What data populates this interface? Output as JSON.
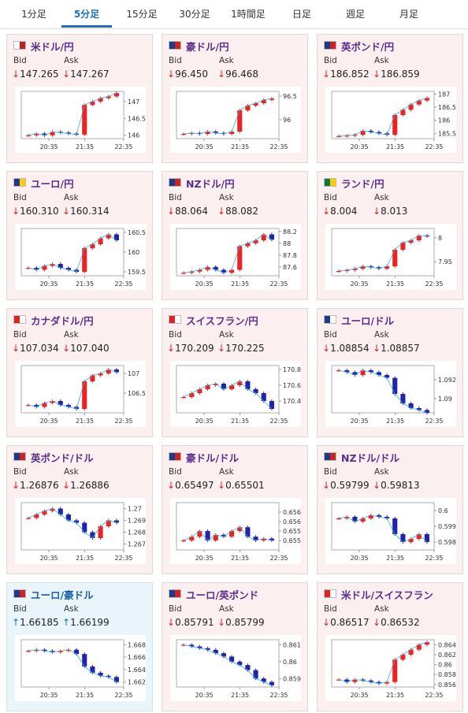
{
  "tabs": [
    "1分足",
    "5分足",
    "15分足",
    "30分足",
    "1時間足",
    "日足",
    "週足",
    "月足"
  ],
  "selected_tab": 1,
  "bid_label": "Bid",
  "ask_label": "Ask",
  "x_labels": [
    "20:35",
    "21:35",
    "22:35"
  ],
  "cards": [
    {
      "name": "米ドル/円",
      "bid_arrow": "↓",
      "bid": "147.265",
      "ask_arrow": "↓",
      "ask": "147.267",
      "ylim": [
        145.9,
        147.3
      ],
      "yticks": [
        146,
        146.5,
        147
      ],
      "closes": [
        146.0,
        146.05,
        146.0,
        146.1,
        146.08,
        146.05,
        146.02,
        146.9,
        147.0,
        147.1,
        147.15,
        147.25
      ]
    },
    {
      "name": "豪ドル/円",
      "bid_arrow": "↓",
      "bid": "96.450",
      "ask_arrow": "↓",
      "ask": "96.468",
      "ylim": [
        95.6,
        96.6
      ],
      "yticks": [
        96,
        96.5
      ],
      "closes": [
        95.7,
        95.72,
        95.7,
        95.75,
        95.72,
        95.7,
        95.75,
        96.2,
        96.3,
        96.35,
        96.42,
        96.45
      ]
    },
    {
      "name": "英ポンド/円",
      "bid_arrow": "↓",
      "bid": "186.852",
      "ask_arrow": "↓",
      "ask": "186.859",
      "ylim": [
        185.3,
        187.1
      ],
      "yticks": [
        185.5,
        186,
        186.5,
        187
      ],
      "closes": [
        185.4,
        185.42,
        185.45,
        185.6,
        185.55,
        185.5,
        185.45,
        186.2,
        186.4,
        186.6,
        186.75,
        186.85
      ]
    },
    {
      "name": "ユーロ/円",
      "bid_arrow": "↓",
      "bid": "160.310",
      "ask_arrow": "↓",
      "ask": "160.314",
      "ylim": [
        159.4,
        160.6
      ],
      "yticks": [
        159.5,
        160,
        160.5
      ],
      "closes": [
        159.6,
        159.55,
        159.65,
        159.7,
        159.6,
        159.55,
        159.5,
        160.1,
        160.2,
        160.35,
        160.45,
        160.3
      ]
    },
    {
      "name": "NZドル/円",
      "bid_arrow": "↓",
      "bid": "88.064",
      "ask_arrow": "↓",
      "ask": "88.082",
      "ylim": [
        87.45,
        88.25
      ],
      "yticks": [
        87.6,
        87.8,
        88,
        88.2
      ],
      "closes": [
        87.5,
        87.52,
        87.55,
        87.6,
        87.55,
        87.5,
        87.55,
        87.95,
        88.0,
        88.05,
        88.15,
        88.06
      ]
    },
    {
      "name": "ランド/円",
      "bid_arrow": "↓",
      "bid": "8.004",
      "ask_arrow": "↓",
      "ask": "8.013",
      "ylim": [
        7.92,
        8.02
      ],
      "yticks": [
        7.95,
        8
      ],
      "closes": [
        7.93,
        7.932,
        7.935,
        7.94,
        7.938,
        7.935,
        7.94,
        7.975,
        7.99,
        7.995,
        8.005,
        8.004
      ]
    },
    {
      "name": "カナダドル/円",
      "bid_arrow": "↓",
      "bid": "107.034",
      "ask_arrow": "↓",
      "ask": "107.040",
      "ylim": [
        106,
        107.2
      ],
      "yticks": [
        106.5,
        107
      ],
      "closes": [
        106.2,
        106.15,
        106.25,
        106.3,
        106.2,
        106.15,
        106.1,
        106.8,
        106.95,
        107.0,
        107.1,
        107.03
      ]
    },
    {
      "name": "スイスフラン/円",
      "bid_arrow": "↓",
      "bid": "170.209",
      "ask_arrow": "↓",
      "ask": "170.225",
      "ylim": [
        170.25,
        170.85
      ],
      "yticks": [
        170.4,
        170.6,
        170.8
      ],
      "closes": [
        170.45,
        170.5,
        170.55,
        170.6,
        170.62,
        170.55,
        170.6,
        170.65,
        170.55,
        170.5,
        170.4,
        170.3
      ]
    },
    {
      "name": "ユーロ/ドル",
      "bid_arrow": "↓",
      "bid": "1.08854",
      "ask_arrow": "↓",
      "ask": "1.08857",
      "ylim": [
        1.0885,
        1.0935
      ],
      "yticks": [
        1.09,
        1.092
      ],
      "closes": [
        1.093,
        1.0928,
        1.0925,
        1.093,
        1.0928,
        1.0925,
        1.0922,
        1.0905,
        1.0895,
        1.089,
        1.0888,
        1.0885
      ]
    },
    {
      "name": "英ポンド/ドル",
      "bid_arrow": "↓",
      "bid": "1.26876",
      "ask_arrow": "↓",
      "ask": "1.26886",
      "ylim": [
        1.2665,
        1.2705
      ],
      "yticks": [
        1.267,
        1.268,
        1.269,
        1.27
      ],
      "closes": [
        1.2692,
        1.2695,
        1.2698,
        1.27,
        1.2695,
        1.269,
        1.2688,
        1.268,
        1.2675,
        1.2685,
        1.269,
        1.2688
      ]
    },
    {
      "name": "豪ドル/ドル",
      "bid_arrow": "↓",
      "bid": "0.65497",
      "ask_arrow": "↓",
      "ask": "0.65501",
      "ylim": [
        0.6545,
        0.657
      ],
      "yticks": [
        0.655,
        0.6555,
        0.656,
        0.6565
      ],
      "closes": [
        0.655,
        0.6552,
        0.6555,
        0.655,
        0.6553,
        0.6552,
        0.6555,
        0.6557,
        0.6552,
        0.655,
        0.6551,
        0.655
      ]
    },
    {
      "name": "NZドル/ドル",
      "bid_arrow": "↓",
      "bid": "0.59799",
      "ask_arrow": "↓",
      "ask": "0.59813",
      "ylim": [
        0.5975,
        0.6005
      ],
      "yticks": [
        0.598,
        0.599,
        0.6
      ],
      "closes": [
        0.5995,
        0.5996,
        0.5993,
        0.5995,
        0.5997,
        0.5996,
        0.5995,
        0.5985,
        0.598,
        0.5982,
        0.5985,
        0.598
      ]
    },
    {
      "name": "ユーロ/豪ドル",
      "bid_arrow": "↑",
      "bid": "1.66185",
      "ask_arrow": "↑",
      "ask": "1.66199",
      "ylim": [
        1.6612,
        1.6688
      ],
      "yticks": [
        1.662,
        1.664,
        1.666,
        1.668
      ],
      "closes": [
        1.667,
        1.6672,
        1.667,
        1.6668,
        1.667,
        1.6672,
        1.6665,
        1.6645,
        1.6635,
        1.663,
        1.6628,
        1.662
      ]
    },
    {
      "name": "ユーロ/英ポンド",
      "bid_arrow": "↓",
      "bid": "0.85791",
      "ask_arrow": "↓",
      "ask": "0.85799",
      "ylim": [
        0.8585,
        0.8613
      ],
      "yticks": [
        0.859,
        0.86,
        0.861
      ],
      "closes": [
        0.861,
        0.8609,
        0.8608,
        0.8607,
        0.8605,
        0.8603,
        0.86,
        0.8598,
        0.8595,
        0.859,
        0.8588,
        0.8586
      ]
    },
    {
      "name": "米ドル/スイスフラン",
      "bid_arrow": "↓",
      "bid": "0.86517",
      "ask_arrow": "↓",
      "ask": "0.86532",
      "ylim": [
        0.8555,
        0.865
      ],
      "yticks": [
        0.856,
        0.858,
        0.86,
        0.862,
        0.864
      ],
      "closes": [
        0.857,
        0.8565,
        0.857,
        0.8568,
        0.8565,
        0.8562,
        0.8565,
        0.861,
        0.862,
        0.863,
        0.864,
        0.8645
      ]
    }
  ]
}
